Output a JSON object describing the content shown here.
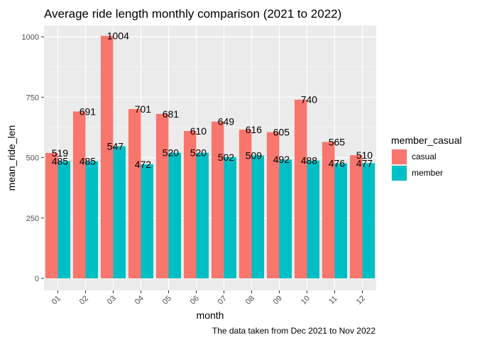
{
  "chart_data": {
    "type": "bar",
    "title": "Average ride length monthly comparison (2021 to 2022)",
    "caption": "The data taken from Dec 2021 to Nov 2022",
    "xlabel": "month",
    "ylabel": "mean_ride_len",
    "categories": [
      "01",
      "02",
      "03",
      "04",
      "05",
      "06",
      "07",
      "08",
      "09",
      "10",
      "11",
      "12"
    ],
    "yticks": [
      0,
      250,
      500,
      750,
      1000
    ],
    "ylim": [
      0,
      1050
    ],
    "grid": true,
    "legend": {
      "title": "member_casual",
      "position": "right"
    },
    "series": [
      {
        "name": "casual",
        "color": "#F8766D",
        "values": [
          519,
          691,
          1004,
          701,
          681,
          610,
          649,
          616,
          605,
          740,
          565,
          510
        ]
      },
      {
        "name": "member",
        "color": "#00BFC4",
        "values": [
          485,
          485,
          547,
          472,
          520,
          520,
          502,
          509,
          492,
          488,
          476,
          477
        ]
      }
    ]
  }
}
